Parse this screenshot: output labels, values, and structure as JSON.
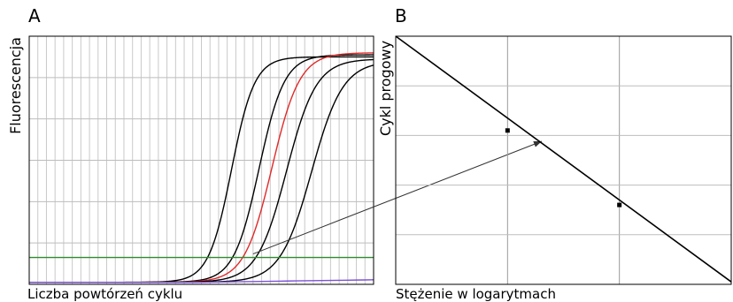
{
  "chart_data": [
    {
      "type": "line",
      "panel_label": "A",
      "xlabel": "Liczba powtórzeń cyklu",
      "ylabel": "Fluorescencja",
      "xlim": [
        0,
        40
      ],
      "ylim": [
        0,
        12
      ],
      "x_gridlines": 40,
      "y_gridlines": [
        2,
        4,
        6,
        8,
        10
      ],
      "grid": true,
      "threshold": {
        "value": 1.3,
        "color": "#2e8b2e"
      },
      "baseline": {
        "value": 0.1,
        "color": "#7b52d6"
      },
      "series": [
        {
          "color": "#000000",
          "midpoint": 23.5,
          "plateau": 11.0,
          "slope": 0.75
        },
        {
          "color": "#000000",
          "midpoint": 26.7,
          "plateau": 11.1,
          "slope": 0.68
        },
        {
          "color": "#e02a2a",
          "midpoint": 28.2,
          "plateau": 11.2,
          "slope": 0.62
        },
        {
          "color": "#000000",
          "midpoint": 29.9,
          "plateau": 10.9,
          "slope": 0.58
        },
        {
          "color": "#000000",
          "midpoint": 32.8,
          "plateau": 10.8,
          "slope": 0.55
        }
      ]
    },
    {
      "type": "scatter",
      "panel_label": "B",
      "xlabel": "Stężenie w logarytmach",
      "ylabel": "Cykl progowy",
      "xlim": [
        0,
        3
      ],
      "ylim": [
        0,
        5
      ],
      "x_gridlines": [
        1,
        2
      ],
      "y_gridlines": [
        1,
        2,
        3,
        4
      ],
      "grid": true,
      "fit_line": [
        [
          0,
          5.0
        ],
        [
          3,
          0.05
        ]
      ],
      "points": [
        {
          "x": 1.0,
          "y": 3.1
        },
        {
          "x": 2.0,
          "y": 1.6
        }
      ]
    }
  ]
}
